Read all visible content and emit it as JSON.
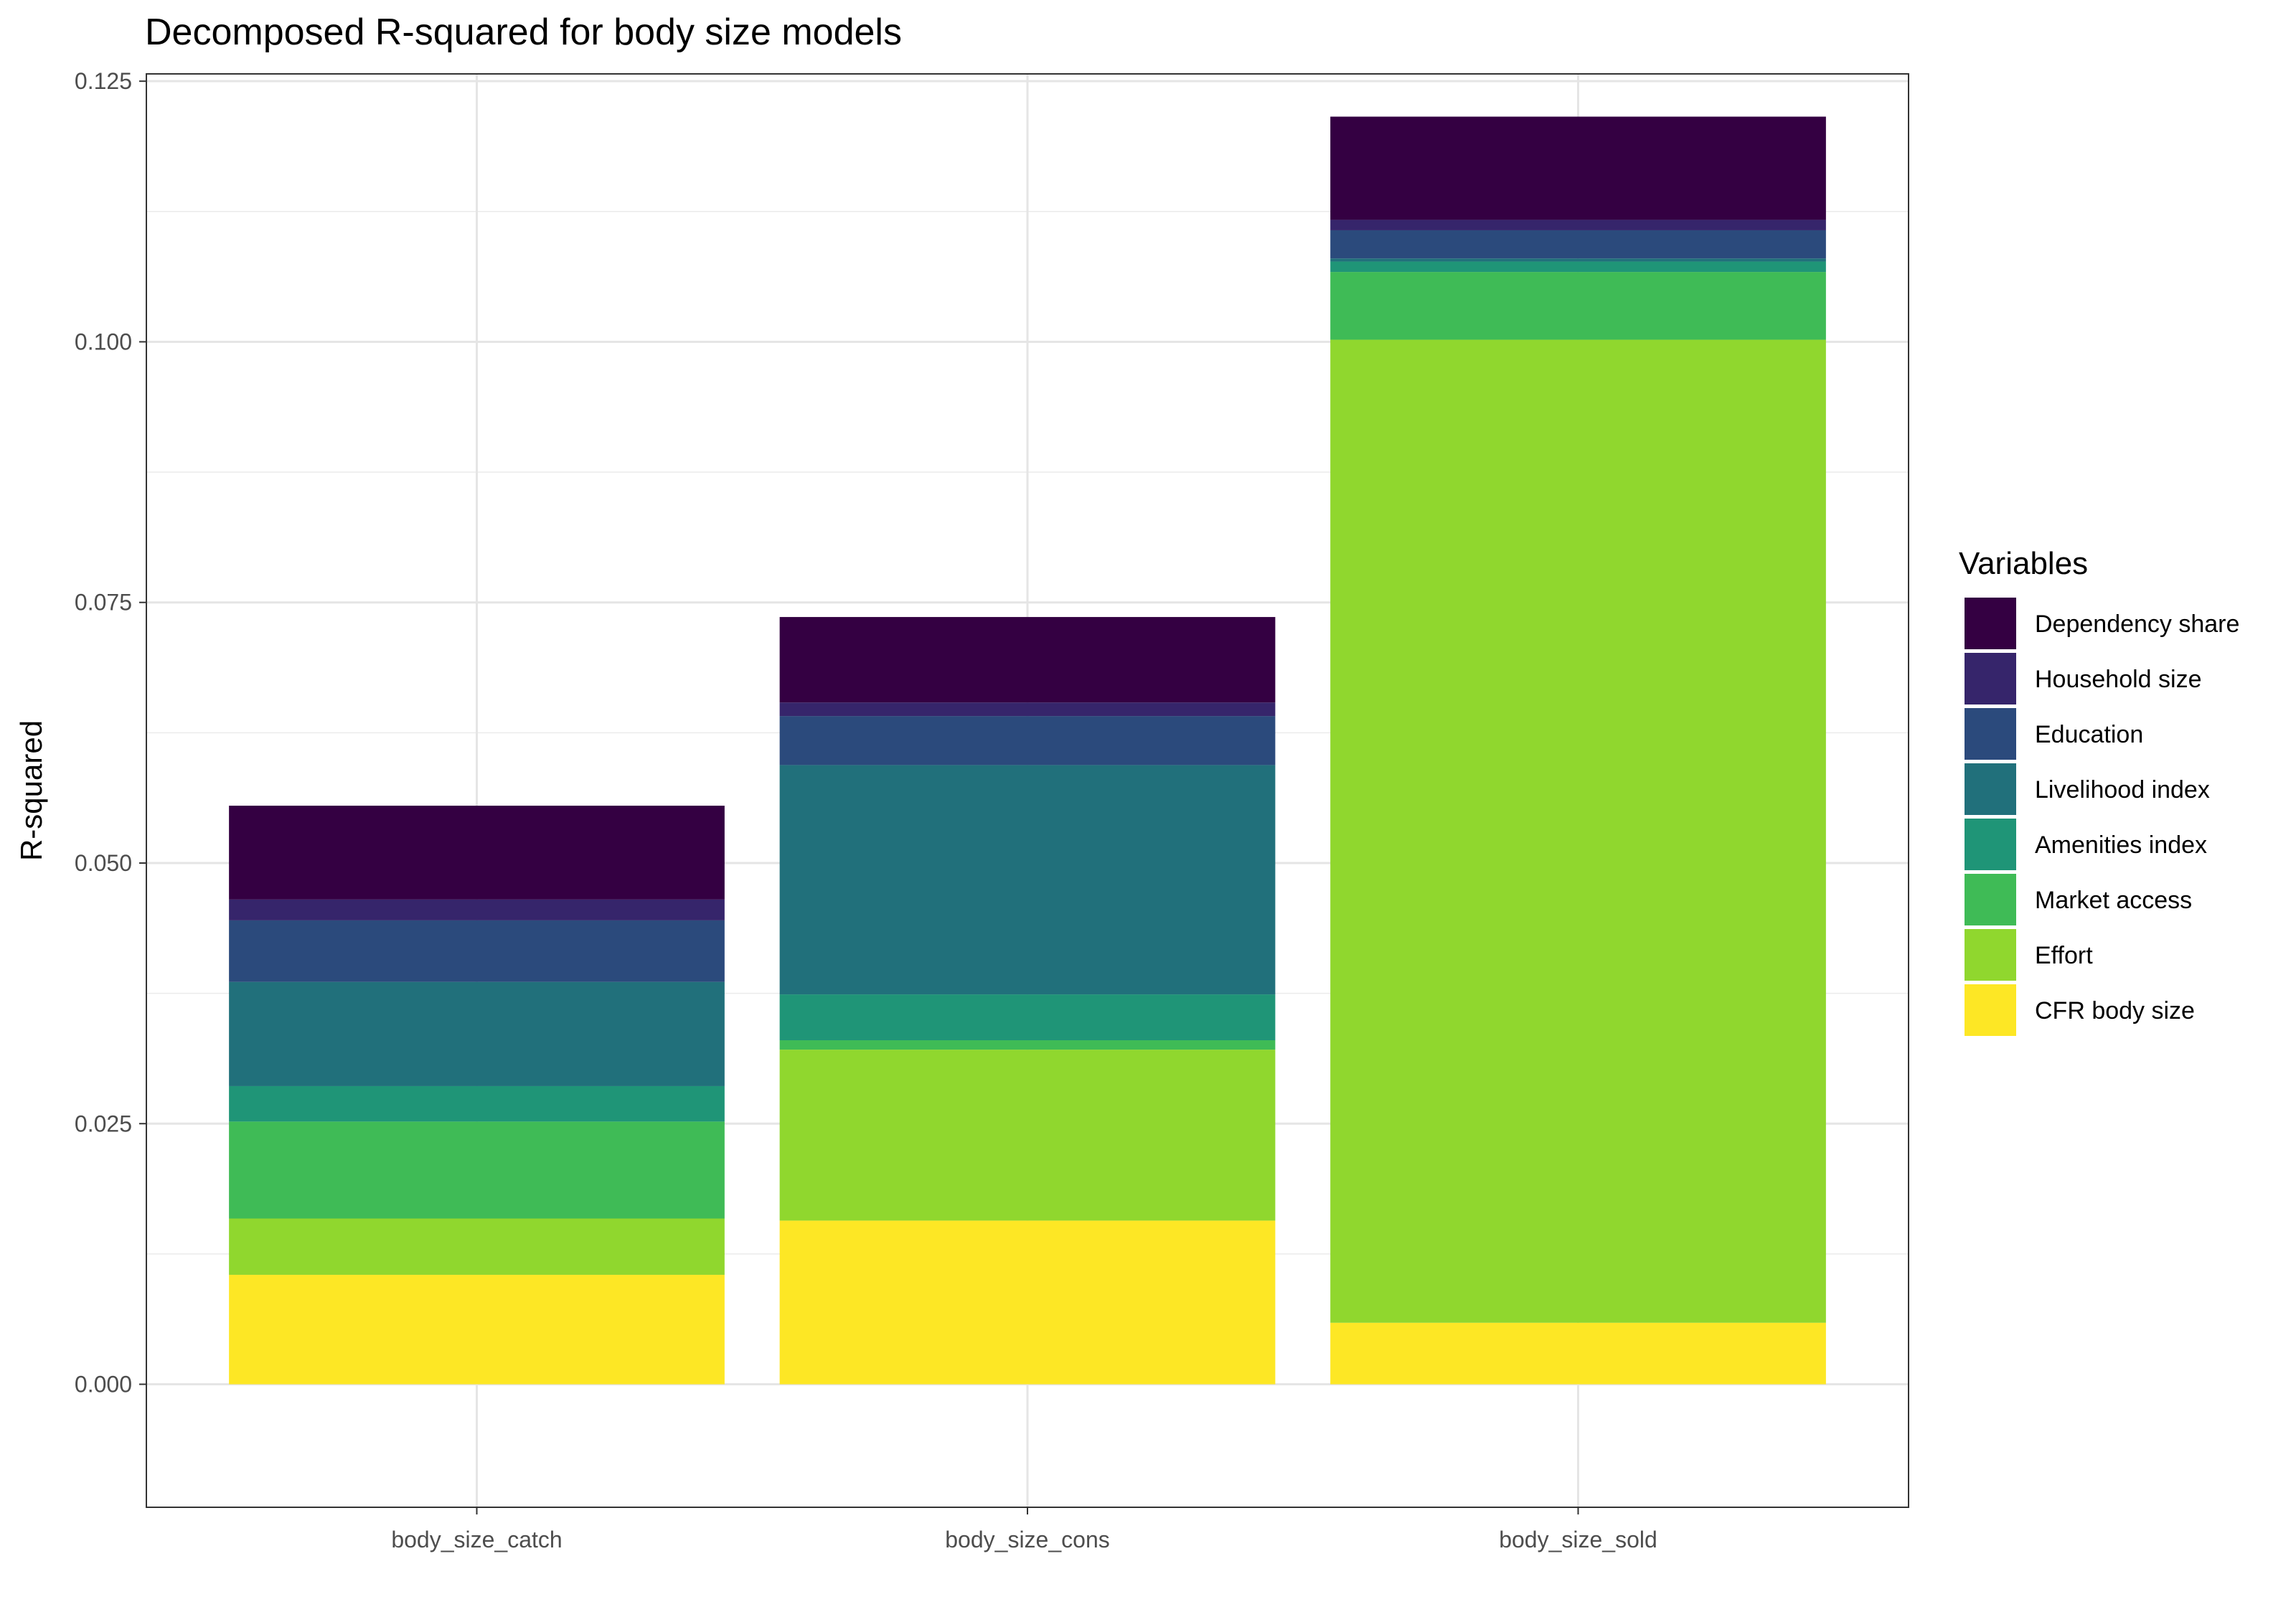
{
  "chart_data": {
    "type": "bar",
    "stacked": true,
    "title": "Decomposed R-squared for body size models",
    "xlabel": "",
    "ylabel": "R-squared",
    "ylim": [
      -0.0118,
      0.1257
    ],
    "yticks": [
      "0.000",
      "0.025",
      "0.050",
      "0.075",
      "0.100",
      "0.125"
    ],
    "ytick_values": [
      0,
      0.025,
      0.05,
      0.075,
      0.1,
      0.125
    ],
    "grid": true,
    "legend_position": "right",
    "legend_title": "Variables",
    "categories": [
      "body_size_catch",
      "body_size_cons",
      "body_size_sold"
    ],
    "series": [
      {
        "name": "CFR body size",
        "color": "#FDE725",
        "values": [
          0.0105,
          0.0157,
          0.0059
        ]
      },
      {
        "name": "Effort",
        "color": "#90D72E",
        "values": [
          0.0054,
          0.0164,
          0.0943
        ]
      },
      {
        "name": "Market access",
        "color": "#3FBB56",
        "values": [
          0.0093,
          0.0009,
          0.0065
        ]
      },
      {
        "name": "Amenities index",
        "color": "#1F9577",
        "values": [
          0.0034,
          0.0044,
          0.001
        ]
      },
      {
        "name": "Livelihood index",
        "color": "#21707B",
        "values": [
          0.01,
          0.022,
          0.0003
        ]
      },
      {
        "name": "Education",
        "color": "#2B4A7C",
        "values": [
          0.0059,
          0.0047,
          0.0027
        ]
      },
      {
        "name": "Household size",
        "color": "#36256B",
        "values": [
          0.002,
          0.0013,
          0.001
        ]
      },
      {
        "name": "Dependency share",
        "color": "#340042",
        "values": [
          0.009,
          0.0082,
          0.0099
        ]
      }
    ]
  }
}
